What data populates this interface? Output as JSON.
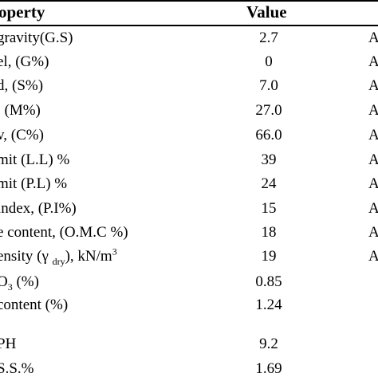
{
  "table": {
    "header": {
      "property": "operty",
      "value": "Value"
    },
    "rows": [
      {
        "property": " gravity(G.S)",
        "value": "2.7",
        "standard": "A"
      },
      {
        "property": "el, (G%)",
        "value": "0",
        "standard": "A"
      },
      {
        "property": "d, (S%)",
        "value": "7.0",
        "standard": "A"
      },
      {
        "property": ", (M%)",
        "value": "27.0",
        "standard": "A"
      },
      {
        "property": "v, (C%)",
        "value": "66.0",
        "standard": "A"
      },
      {
        "property": "mit (L.L) %",
        "value": "39",
        "standard": "A"
      },
      {
        "property": "mit (P.L) %",
        "value": "24",
        "standard": "A"
      },
      {
        "property": " index, (P.I%)",
        "value": "15",
        "standard": "A"
      },
      {
        "property": "e content, (O.M.C %)",
        "value": "18",
        "standard": "A"
      },
      {
        "property_pre": "ensity (γ ",
        "property_sub": "dry",
        "property_mid": "), kN/m",
        "property_sup": "3",
        "value": "19",
        "standard": "A"
      },
      {
        "property_pre": "O",
        "property_sub": "3",
        "property_post": " (%)",
        "value": "0.85",
        "standard": ""
      },
      {
        "property": " content (%)",
        "value": "1.24",
        "standard": ""
      },
      {
        "property": "PH",
        "value": "9.2",
        "standard": ""
      },
      {
        "property": "S.S.%",
        "value": "1.69",
        "standard": ""
      }
    ]
  }
}
